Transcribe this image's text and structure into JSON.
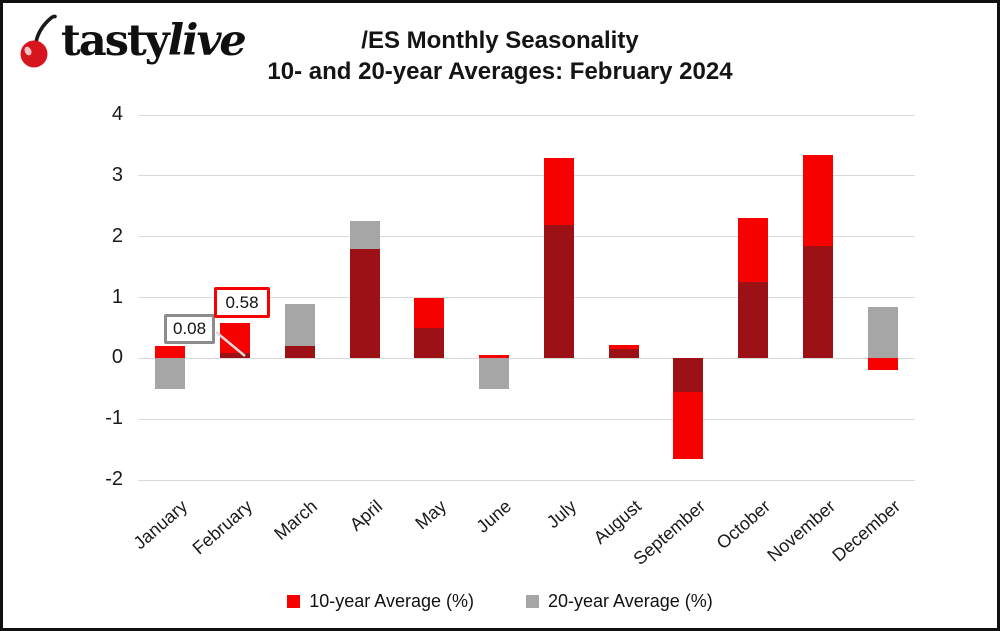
{
  "logo": {
    "part1": "tasty",
    "part2": "live",
    "cherry_color": "#d6151f"
  },
  "title": {
    "line1": "/ES Monthly Seasonality",
    "line2": "10- and 20-year Averages: February 2024"
  },
  "legend": {
    "items": [
      {
        "label": "10-year Average (%)",
        "color": "#f70000"
      },
      {
        "label": "20-year Average (%)",
        "color": "#a6a6a6"
      }
    ]
  },
  "annotations": {
    "feb20": {
      "value": "0.08",
      "border_color": "#8c8c8c",
      "series": "20-year Average (%)",
      "month": "February"
    },
    "feb10": {
      "value": "0.58",
      "border_color": "#f70000",
      "series": "10-year Average (%)",
      "month": "February"
    }
  },
  "chart_data": {
    "type": "bar",
    "title": "/ES Monthly Seasonality",
    "subtitle": "10- and 20-year Averages: February 2024",
    "categories": [
      "January",
      "February",
      "March",
      "April",
      "May",
      "June",
      "July",
      "August",
      "September",
      "October",
      "November",
      "December"
    ],
    "series": [
      {
        "name": "10-year Average (%)",
        "color": "#f70000",
        "values": [
          0.2,
          0.58,
          0.2,
          1.8,
          1.0,
          0.05,
          3.3,
          0.22,
          -1.65,
          2.3,
          3.35,
          -0.2
        ]
      },
      {
        "name": "20-year Average (%)",
        "color": "#a6a6a6",
        "values": [
          -0.5,
          0.08,
          0.9,
          2.25,
          0.5,
          -0.5,
          2.2,
          0.15,
          -0.55,
          1.25,
          1.85,
          0.85
        ]
      }
    ],
    "overlap_color": "#9b1116",
    "gridline_color": "#d9d9d9",
    "y_ticks": [
      4,
      3,
      2,
      1,
      0,
      -1,
      -2
    ],
    "ylim": [
      -2,
      4
    ],
    "xlabel": "",
    "ylabel": "",
    "grid": true,
    "legend_position": "bottom",
    "bar_overlap": "100%"
  }
}
